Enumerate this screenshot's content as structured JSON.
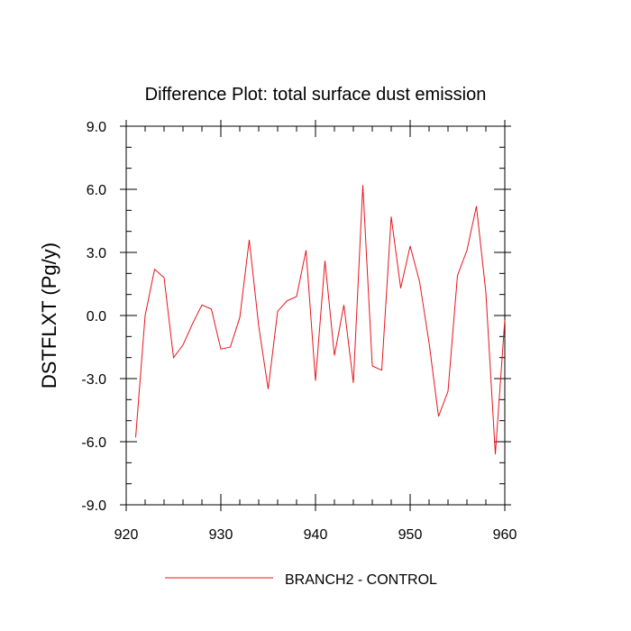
{
  "chart_data": {
    "type": "line",
    "title": "Difference Plot: total surface dust emission",
    "xlabel": "",
    "ylabel": "DSTFLXT  (Pg/y)",
    "xlim": [
      920,
      960
    ],
    "ylim": [
      -9.0,
      9.0
    ],
    "x_ticks": [
      920,
      930,
      940,
      950,
      960
    ],
    "x_tick_labels": [
      "920",
      "930",
      "940",
      "950",
      "960"
    ],
    "y_ticks": [
      -9,
      -6,
      -3,
      0,
      3,
      6,
      9
    ],
    "y_tick_labels": [
      "-9.0",
      "-6.0",
      "-3.0",
      "0.0",
      "3.0",
      "6.0",
      "9.0"
    ],
    "grid": false,
    "legend_position": "bottom-center",
    "series": [
      {
        "name": "BRANCH2 - CONTROL",
        "color": "#e8141c",
        "x": [
          921,
          922,
          923,
          924,
          925,
          926,
          927,
          928,
          929,
          930,
          931,
          932,
          933,
          934,
          935,
          936,
          937,
          938,
          939,
          940,
          941,
          942,
          943,
          944,
          945,
          946,
          947,
          948,
          949,
          950,
          951,
          952,
          953,
          954,
          955,
          956,
          957,
          958,
          959,
          960
        ],
        "values": [
          -5.8,
          0.0,
          2.2,
          1.8,
          -2.0,
          -1.4,
          -0.4,
          0.5,
          0.3,
          -1.6,
          -1.5,
          -0.1,
          3.6,
          -0.5,
          -3.5,
          0.2,
          0.7,
          0.9,
          3.1,
          -3.1,
          2.6,
          -1.9,
          0.5,
          -3.2,
          6.2,
          -2.4,
          -2.6,
          4.7,
          1.3,
          3.3,
          1.6,
          -1.3,
          -4.8,
          -3.6,
          1.9,
          3.1,
          5.2,
          1.1,
          -6.6,
          -0.2
        ]
      }
    ]
  }
}
